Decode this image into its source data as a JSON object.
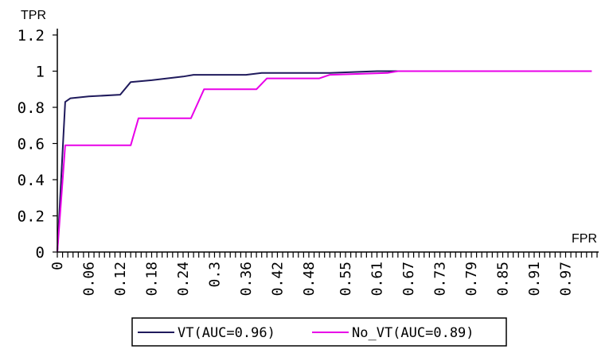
{
  "chart_data": {
    "type": "line",
    "title": "",
    "xlabel": "FPR",
    "ylabel": "TPR",
    "xlim": [
      0,
      1.03
    ],
    "ylim": [
      0,
      1.2
    ],
    "y_ticks": [
      "0",
      "0.2",
      "0.4",
      "0.6",
      "0.8",
      "1",
      "1.2"
    ],
    "x_tick_labels": [
      "0",
      "0.06",
      "0.12",
      "0.18",
      "0.24",
      "0.3",
      "0.36",
      "0.42",
      "0.48",
      "0.55",
      "0.61",
      "0.67",
      "0.73",
      "0.79",
      "0.85",
      "0.91",
      "0.97"
    ],
    "grid": false,
    "legend_position": "bottom",
    "series": [
      {
        "name": "VT(AUC=0.96)",
        "color": "#1f1a5c",
        "x": [
          0,
          0.015,
          0.025,
          0.06,
          0.12,
          0.14,
          0.18,
          0.24,
          0.26,
          0.36,
          0.39,
          0.48,
          0.52,
          0.61,
          0.65
        ],
        "y": [
          0,
          0.83,
          0.85,
          0.86,
          0.87,
          0.94,
          0.95,
          0.97,
          0.98,
          0.98,
          0.99,
          0.99,
          0.99,
          1.0,
          1.0
        ]
      },
      {
        "name": "No_VT(AUC=0.89)",
        "color": "#e800e8",
        "x": [
          0,
          0.015,
          0.14,
          0.155,
          0.255,
          0.28,
          0.38,
          0.4,
          0.5,
          0.52,
          0.63,
          0.65,
          1.02
        ],
        "y": [
          0,
          0.59,
          0.59,
          0.74,
          0.74,
          0.9,
          0.9,
          0.96,
          0.96,
          0.98,
          0.99,
          1.0,
          1.0
        ]
      }
    ]
  }
}
